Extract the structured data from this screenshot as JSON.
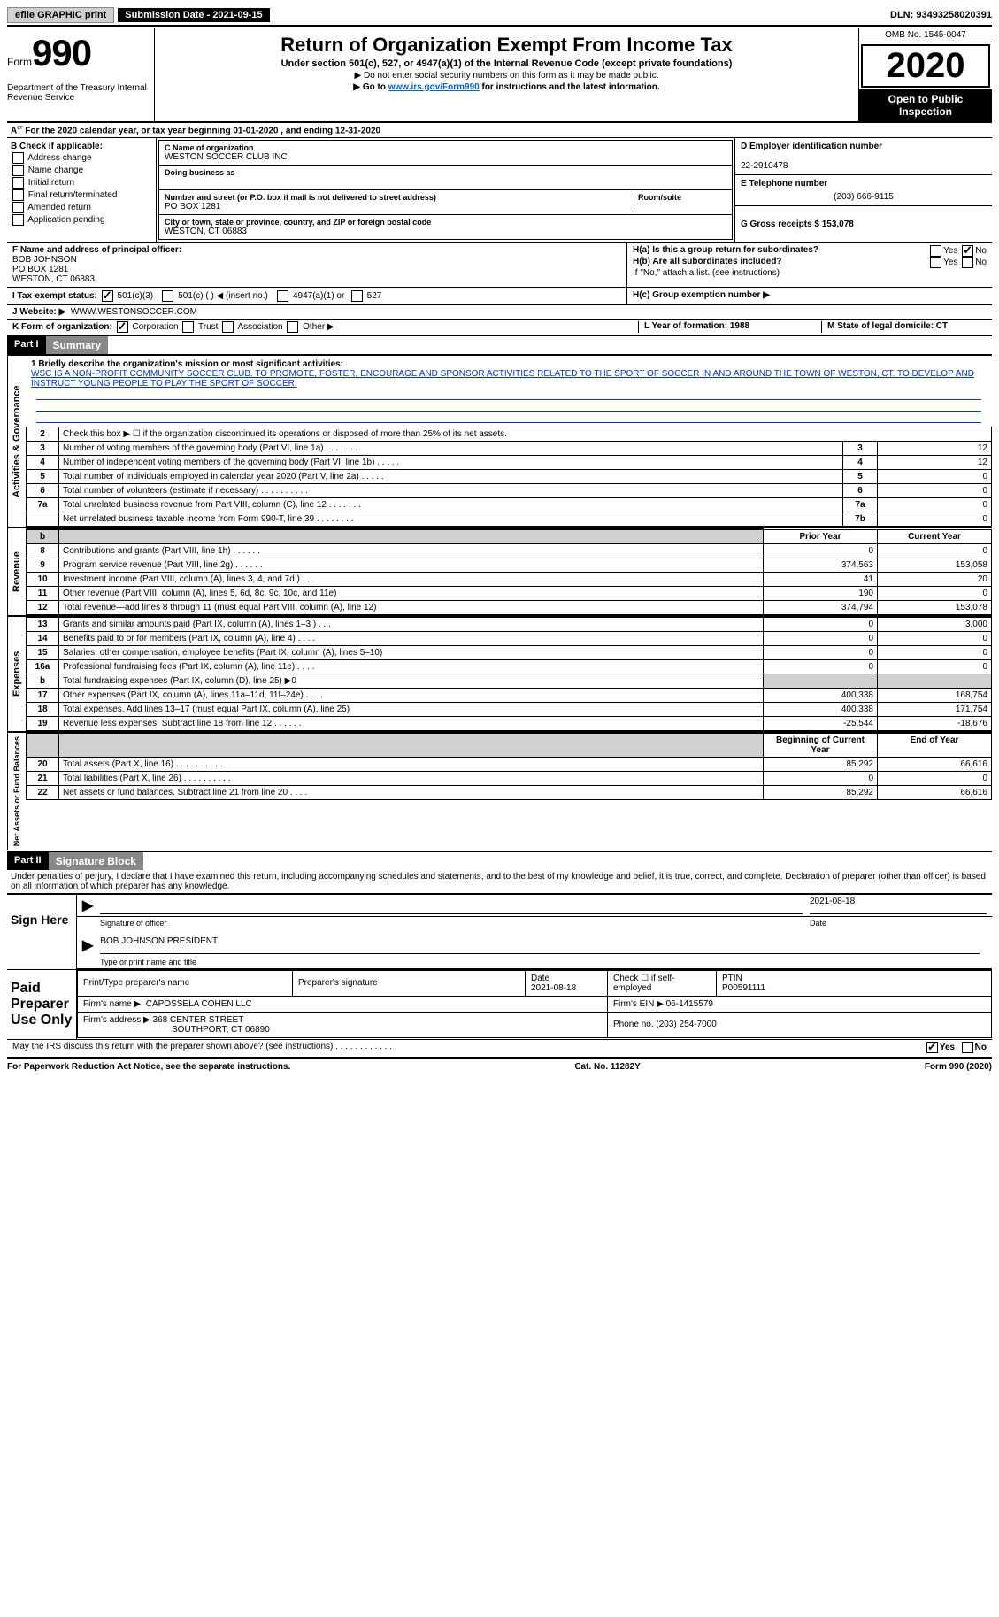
{
  "topbar": {
    "efile": "efile GRAPHIC print",
    "subdate_lbl": "Submission Date - 2021-09-15",
    "dln": "DLN: 93493258020391"
  },
  "header": {
    "form_prefix": "Form",
    "form_num": "990",
    "dept": "Department of the Treasury Internal Revenue Service",
    "title": "Return of Organization Exempt From Income Tax",
    "sub": "Under section 501(c), 527, or 4947(a)(1) of the Internal Revenue Code (except private foundations)",
    "note1": "▶ Do not enter social security numbers on this form as it may be made public.",
    "note2_pre": "▶ Go to ",
    "note2_link": "www.irs.gov/Form990",
    "note2_post": " for instructions and the latest information.",
    "omb": "OMB No. 1545-0047",
    "year": "2020",
    "inspection": "Open to Public Inspection"
  },
  "rowA": {
    "text_pre": "A",
    "text": " For the 2020 calendar year, or tax year beginning 01-01-2020     , and ending 12-31-2020"
  },
  "colB": {
    "title": "B Check if applicable:",
    "opts": [
      "Address change",
      "Name change",
      "Initial return",
      "Final return/terminated",
      "Amended return",
      "Application pending"
    ]
  },
  "colC": {
    "name_lbl": "C Name of organization",
    "name": "WESTON SOCCER CLUB INC",
    "dba_lbl": "Doing business as",
    "addr_lbl": "Number and street (or P.O. box if mail is not delivered to street address)",
    "room_lbl": "Room/suite",
    "addr": "PO BOX 1281",
    "city_lbl": "City or town, state or province, country, and ZIP or foreign postal code",
    "city": "WESTON, CT  06883"
  },
  "colD": {
    "ein_lbl": "D Employer identification number",
    "ein": "22-2910478",
    "tel_lbl": "E Telephone number",
    "tel": "(203) 666-9115",
    "gross_lbl": "G Gross receipts $ 153,078"
  },
  "rowF": {
    "lbl": "F  Name and address of principal officer:",
    "name": "BOB JOHNSON",
    "addr1": "PO BOX 1281",
    "addr2": "WESTON, CT  06883"
  },
  "rowH": {
    "ha": "H(a)  Is this a group return for subordinates?",
    "hb": "H(b)  Are all subordinates included?",
    "hb_note": "If \"No,\" attach a list. (see instructions)",
    "hc": "H(c)  Group exemption number ▶",
    "yes": "Yes",
    "no": "No"
  },
  "rowI": {
    "lbl": "I    Tax-exempt status:",
    "o1": "501(c)(3)",
    "o2": "501(c) (  ) ◀ (insert no.)",
    "o3": "4947(a)(1) or",
    "o4": "527"
  },
  "rowJ": {
    "lbl": "J    Website: ▶",
    "val": "WWW.WESTONSOCCER.COM"
  },
  "rowK": {
    "lbl": "K Form of organization:",
    "o1": "Corporation",
    "o2": "Trust",
    "o3": "Association",
    "o4": "Other ▶"
  },
  "rowLM": {
    "l": "L Year of formation: 1988",
    "m": "M State of legal domicile: CT"
  },
  "part1": {
    "hdr": "Part I",
    "title": "Summary"
  },
  "mission": {
    "lbl": "1  Briefly describe the organization's mission or most significant activities:",
    "text": "WSC IS A NON-PROFIT COMMUNITY SOCCER CLUB. TO PROMOTE, FOSTER, ENCOURAGE AND SPONSOR ACTIVITIES RELATED TO THE SPORT OF SOCCER IN AND AROUND THE TOWN OF WESTON, CT. TO DEVELOP AND INSTRUCT YOUNG PEOPLE TO PLAY THE SPORT OF SOCCER."
  },
  "gov_rows": [
    {
      "n": "2",
      "d": "Check this box ▶ ☐  if the organization discontinued its operations or disposed of more than 25% of its net assets.",
      "box": "",
      "v": ""
    },
    {
      "n": "3",
      "d": "Number of voting members of the governing body (Part VI, line 1a)   .    .    .    .    .    .    .",
      "box": "3",
      "v": "12"
    },
    {
      "n": "4",
      "d": "Number of independent voting members of the governing body (Part VI, line 1b)   .    .    .    .    .",
      "box": "4",
      "v": "12"
    },
    {
      "n": "5",
      "d": "Total number of individuals employed in calendar year 2020 (Part V, line 2a)   .    .    .    .    .",
      "box": "5",
      "v": "0"
    },
    {
      "n": "6",
      "d": "Total number of volunteers (estimate if necessary)   .    .    .    .    .    .    .    .    .    .",
      "box": "6",
      "v": "0"
    },
    {
      "n": "7a",
      "d": "Total unrelated business revenue from Part VIII, column (C), line 12   .    .    .    .    .    .    .",
      "box": "7a",
      "v": "0"
    },
    {
      "n": "",
      "d": "Net unrelated business taxable income from Form 990-T, line 39   .    .    .    .    .    .    .    .",
      "box": "7b",
      "v": "0"
    }
  ],
  "rev_hdr": {
    "py": "Prior Year",
    "cy": "Current Year"
  },
  "rev_rows": [
    {
      "n": "8",
      "d": "Contributions and grants (Part VIII, line 1h)   .    .    .    .    .    .",
      "py": "0",
      "cy": "0"
    },
    {
      "n": "9",
      "d": "Program service revenue (Part VIII, line 2g)   .    .    .    .    .    .",
      "py": "374,563",
      "cy": "153,058"
    },
    {
      "n": "10",
      "d": "Investment income (Part VIII, column (A), lines 3, 4, and 7d )   .    .    .",
      "py": "41",
      "cy": "20"
    },
    {
      "n": "11",
      "d": "Other revenue (Part VIII, column (A), lines 5, 6d, 8c, 9c, 10c, and 11e)",
      "py": "190",
      "cy": "0"
    },
    {
      "n": "12",
      "d": "Total revenue—add lines 8 through 11 (must equal Part VIII, column (A), line 12)",
      "py": "374,794",
      "cy": "153,078"
    }
  ],
  "exp_rows": [
    {
      "n": "13",
      "d": "Grants and similar amounts paid (Part IX, column (A), lines 1–3 )   .    .    .",
      "py": "0",
      "cy": "3,000"
    },
    {
      "n": "14",
      "d": "Benefits paid to or for members (Part IX, column (A), line 4)   .    .    .    .",
      "py": "0",
      "cy": "0"
    },
    {
      "n": "15",
      "d": "Salaries, other compensation, employee benefits (Part IX, column (A), lines 5–10)",
      "py": "0",
      "cy": "0"
    },
    {
      "n": "16a",
      "d": "Professional fundraising fees (Part IX, column (A), line 11e)   .    .    .    .",
      "py": "0",
      "cy": "0"
    },
    {
      "n": "b",
      "d": "Total fundraising expenses (Part IX, column (D), line 25) ▶0",
      "py": "grey",
      "cy": "grey"
    },
    {
      "n": "17",
      "d": "Other expenses (Part IX, column (A), lines 11a–11d, 11f–24e)   .    .    .    .",
      "py": "400,338",
      "cy": "168,754"
    },
    {
      "n": "18",
      "d": "Total expenses. Add lines 13–17 (must equal Part IX, column (A), line 25)",
      "py": "400,338",
      "cy": "171,754"
    },
    {
      "n": "19",
      "d": "Revenue less expenses. Subtract line 18 from line 12   .    .    .    .    .    .",
      "py": "-25,544",
      "cy": "-18,676"
    }
  ],
  "net_hdr": {
    "py": "Beginning of Current Year",
    "cy": "End of Year"
  },
  "net_rows": [
    {
      "n": "20",
      "d": "Total assets (Part X, line 16)   .    .    .    .    .    .    .    .    .    .",
      "py": "85,292",
      "cy": "66,616"
    },
    {
      "n": "21",
      "d": "Total liabilities (Part X, line 26)   .    .    .    .    .    .    .    .    .    .",
      "py": "0",
      "cy": "0"
    },
    {
      "n": "22",
      "d": "Net assets or fund balances. Subtract line 21 from line 20   .    .    .    .",
      "py": "85,292",
      "cy": "66,616"
    }
  ],
  "sides": {
    "gov": "Activities & Governance",
    "rev": "Revenue",
    "exp": "Expenses",
    "net": "Net Assets or Fund Balances"
  },
  "part2": {
    "hdr": "Part II",
    "title": "Signature Block"
  },
  "penalties": "Under penalties of perjury, I declare that I have examined this return, including accompanying schedules and statements, and to the best of my knowledge and belief, it is true, correct, and complete. Declaration of preparer (other than officer) is based on all information of which preparer has any knowledge.",
  "sign": {
    "here": "Sign Here",
    "sig_lbl": "Signature of officer",
    "date_lbl": "Date",
    "date": "2021-08-18",
    "name": "BOB JOHNSON  PRESIDENT",
    "name_lbl": "Type or print name and title"
  },
  "paid": {
    "title": "Paid Preparer Use Only",
    "h1": "Print/Type preparer's name",
    "h2": "Preparer's signature",
    "h3": "Date",
    "h3v": "2021-08-18",
    "h4": "Check ☐ if self-employed",
    "h5": "PTIN",
    "h5v": "P00591111",
    "firm_lbl": "Firm's name    ▶",
    "firm": "CAPOSSELA COHEN LLC",
    "ein_lbl": "Firm's EIN ▶",
    "ein": "06-1415579",
    "addr_lbl": "Firm's address ▶",
    "addr": "368 CENTER STREET",
    "addr2": "SOUTHPORT, CT  06890",
    "phone_lbl": "Phone no.",
    "phone": "(203) 254-7000"
  },
  "may": {
    "q": "May the IRS discuss this return with the preparer shown above? (see instructions)   .    .    .    .    .    .    .    .    .    .    .    .",
    "yes": "Yes",
    "no": "No"
  },
  "footer": {
    "left": "For Paperwork Reduction Act Notice, see the separate instructions.",
    "mid": "Cat. No. 11282Y",
    "right": "Form 990 (2020)"
  }
}
